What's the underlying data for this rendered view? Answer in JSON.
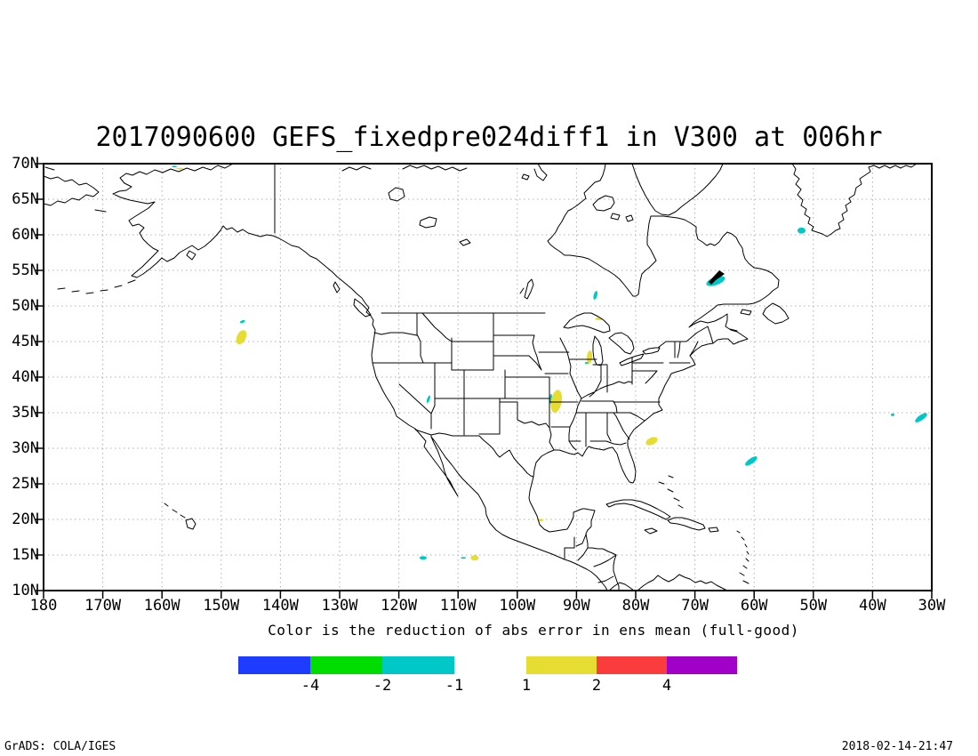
{
  "title": "2017090600 GEFS_fixedpre024diff1 in V300 at 006hr",
  "subtitle": "Color is the reduction of abs error in ens mean (full-good)",
  "footer": {
    "left": "GrADS: COLA/IGES",
    "right": "2018-02-14-21:47"
  },
  "palette": {
    "blue": "#1E3CFF",
    "green": "#00DC00",
    "cyan": "#00C8C8",
    "yellow": "#E6DC32",
    "red": "#FA3C3C",
    "purple": "#A000C8",
    "grid": "#b0b0b0",
    "coast": "#000000"
  },
  "map": {
    "lon_labels": [
      {
        "label": "180",
        "lon": -180
      },
      {
        "label": "170W",
        "lon": -170
      },
      {
        "label": "160W",
        "lon": -160
      },
      {
        "label": "150W",
        "lon": -150
      },
      {
        "label": "140W",
        "lon": -140
      },
      {
        "label": "130W",
        "lon": -130
      },
      {
        "label": "120W",
        "lon": -120
      },
      {
        "label": "110W",
        "lon": -110
      },
      {
        "label": "100W",
        "lon": -100
      },
      {
        "label": "90W",
        "lon": -90
      },
      {
        "label": "80W",
        "lon": -80
      },
      {
        "label": "70W",
        "lon": -70
      },
      {
        "label": "60W",
        "lon": -60
      },
      {
        "label": "50W",
        "lon": -50
      },
      {
        "label": "40W",
        "lon": -40
      },
      {
        "label": "30W",
        "lon": -30
      }
    ],
    "lat_labels": [
      {
        "label": "70N",
        "lat": 70
      },
      {
        "label": "65N",
        "lat": 65
      },
      {
        "label": "60N",
        "lat": 60
      },
      {
        "label": "55N",
        "lat": 55
      },
      {
        "label": "50N",
        "lat": 50
      },
      {
        "label": "45N",
        "lat": 45
      },
      {
        "label": "40N",
        "lat": 40
      },
      {
        "label": "35N",
        "lat": 35
      },
      {
        "label": "30N",
        "lat": 30
      },
      {
        "label": "25N",
        "lat": 25
      },
      {
        "label": "20N",
        "lat": 20
      },
      {
        "label": "15N",
        "lat": 15
      },
      {
        "label": "10N",
        "lat": 10
      }
    ],
    "grid_lons": [
      -170,
      -160,
      -150,
      -140,
      -130,
      -120,
      -110,
      -100,
      -90,
      -80,
      -70,
      -60,
      -50,
      -40
    ],
    "grid_lats": [
      15,
      20,
      25,
      30,
      35,
      40,
      45,
      50,
      55,
      60,
      65
    ]
  },
  "colorbar": {
    "negative": {
      "colors": [
        "blue",
        "green",
        "cyan"
      ],
      "labels": [
        "-4",
        "-2",
        "-1"
      ]
    },
    "positive": {
      "colors": [
        "yellow",
        "red",
        "purple"
      ],
      "labels": [
        "1",
        "2",
        "4"
      ]
    }
  },
  "chart_data": {
    "type": "heatmap",
    "subtype": "filled-contour-anomaly-map-over-north-america",
    "title": "2017090600 GEFS_fixedpre024diff1 in V300 at 006hr",
    "caption": "Color is the reduction of abs error in ens mean (full-good)",
    "lon_range": [
      -180,
      -30
    ],
    "lat_range": [
      10,
      70
    ],
    "gridline_interval": {
      "lon_deg": 10,
      "lat_deg": 5
    },
    "levels": [
      -4,
      -2,
      -1,
      1,
      2,
      4
    ],
    "colors_by_bin": [
      {
        "range": "< -4",
        "color": "blue"
      },
      {
        "range": "-4 to -2",
        "color": "green"
      },
      {
        "range": "-2 to -1",
        "color": "cyan"
      },
      {
        "range": "-1 to 1",
        "color": "none"
      },
      {
        "range": "1 to 2",
        "color": "yellow"
      },
      {
        "range": "2 to 4",
        "color": "red"
      },
      {
        "range": "> 4",
        "color": "purple"
      }
    ],
    "shaded_regions": [
      {
        "color": "cyan",
        "lon": -157.9,
        "lat": 69.6,
        "w": 6,
        "h": 2,
        "rot": 0
      },
      {
        "color": "yellow",
        "lon": -157.0,
        "lat": 69.3,
        "w": 8,
        "h": 2,
        "rot": 0
      },
      {
        "color": "cyan",
        "lon": -146.4,
        "lat": 47.8,
        "w": 6,
        "h": 3,
        "rot": -20
      },
      {
        "color": "yellow",
        "lon": -146.6,
        "lat": 45.6,
        "w": 10,
        "h": 17,
        "rot": 25
      },
      {
        "color": "cyan",
        "lon": -115.0,
        "lat": 36.9,
        "w": 3,
        "h": 9,
        "rot": 20
      },
      {
        "color": "cyan",
        "lon": -86.8,
        "lat": 51.5,
        "w": 4,
        "h": 10,
        "rot": 15
      },
      {
        "color": "yellow",
        "lon": -86.2,
        "lat": 48.2,
        "w": 9,
        "h": 3,
        "rot": 0
      },
      {
        "color": "yellow",
        "lon": -87.8,
        "lat": 42.8,
        "w": 6,
        "h": 15,
        "rot": 5
      },
      {
        "color": "cyan",
        "lon": -88.3,
        "lat": 42.0,
        "w": 4,
        "h": 2,
        "rot": 0
      },
      {
        "color": "cyan",
        "lon": -94.3,
        "lat": 36.9,
        "w": 3,
        "h": 12,
        "rot": 0
      },
      {
        "color": "yellow",
        "lon": -93.4,
        "lat": 36.6,
        "w": 12,
        "h": 26,
        "rot": 10
      },
      {
        "color": "yellow",
        "lon": -77.3,
        "lat": 31.0,
        "w": 14,
        "h": 8,
        "rot": -25
      },
      {
        "color": "cyan",
        "lon": -60.5,
        "lat": 28.2,
        "w": 16,
        "h": 6,
        "rot": -35
      },
      {
        "color": "cyan",
        "lon": -66.5,
        "lat": 53.5,
        "w": 22,
        "h": 9,
        "rot": -20
      },
      {
        "color": "cyan",
        "lon": -52.0,
        "lat": 60.6,
        "w": 9,
        "h": 7,
        "rot": 0
      },
      {
        "color": "cyan",
        "lon": -31.8,
        "lat": 34.3,
        "w": 16,
        "h": 6,
        "rot": -35
      },
      {
        "color": "cyan",
        "lon": -36.6,
        "lat": 34.7,
        "w": 4,
        "h": 3,
        "rot": 0
      },
      {
        "color": "yellow",
        "lon": -96.1,
        "lat": 19.9,
        "w": 7,
        "h": 3,
        "rot": 0
      },
      {
        "color": "cyan",
        "lon": -115.9,
        "lat": 14.6,
        "w": 8,
        "h": 4,
        "rot": 0
      },
      {
        "color": "yellow",
        "lon": -107.2,
        "lat": 14.6,
        "w": 9,
        "h": 6,
        "rot": 0
      },
      {
        "color": "cyan",
        "lon": -109.1,
        "lat": 14.6,
        "w": 6,
        "h": 2,
        "rot": 0
      }
    ]
  }
}
